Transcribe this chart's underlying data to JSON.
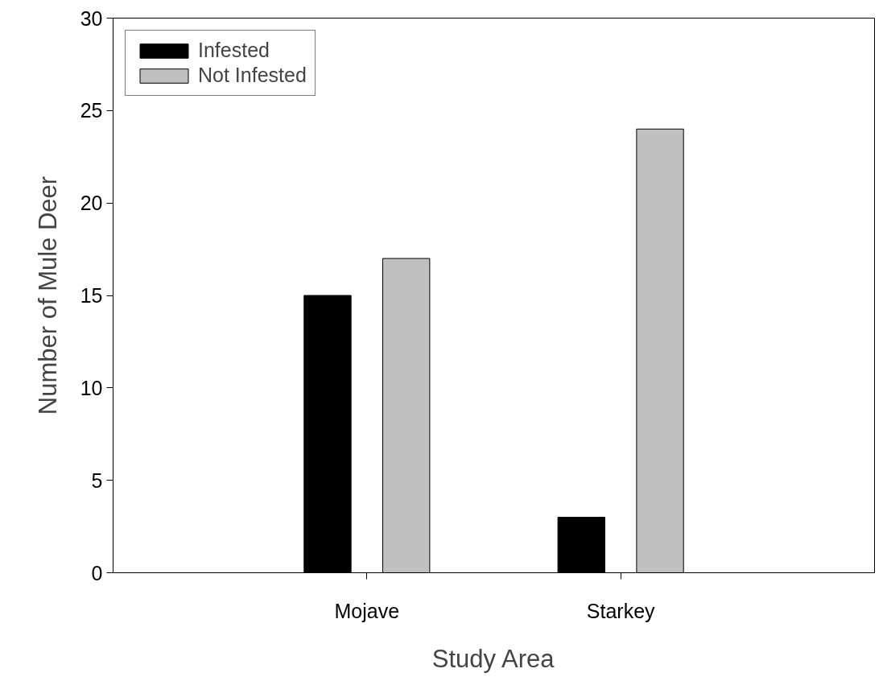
{
  "chart_data": {
    "type": "bar",
    "xlabel": "Study Area",
    "ylabel": "Number of Mule Deer",
    "categories": [
      "Mojave",
      "Starkey"
    ],
    "series": [
      {
        "name": "Infested",
        "color": "#000000",
        "values": [
          15,
          3
        ]
      },
      {
        "name": "Not Infested",
        "color": "#c0c0c0",
        "values": [
          17,
          24
        ]
      }
    ],
    "ylim": [
      0,
      30
    ],
    "yticks": [
      0,
      5,
      10,
      15,
      20,
      25,
      30
    ],
    "grid": false,
    "legend": "top left"
  }
}
